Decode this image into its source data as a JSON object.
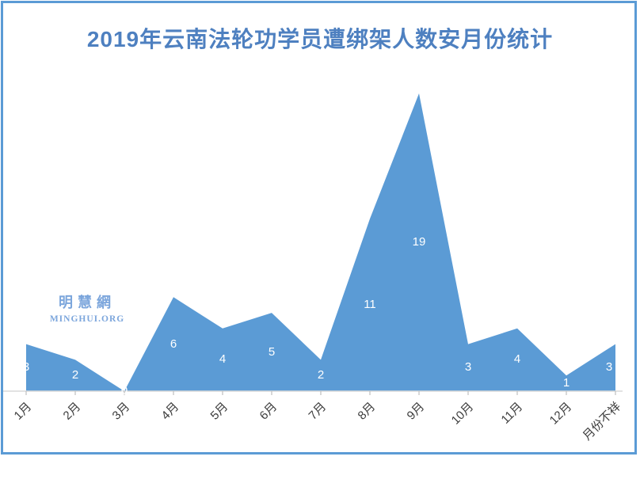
{
  "chart_data": {
    "type": "area",
    "title": "2019年云南法轮功学员遭绑架人数安月份统计",
    "categories": [
      "1月",
      "2月",
      "3月",
      "4月",
      "5月",
      "6月",
      "7月",
      "8月",
      "9月",
      "10月",
      "11月",
      "12月",
      "月份不祥"
    ],
    "values": [
      3,
      2,
      0,
      6,
      4,
      5,
      2,
      11,
      19,
      3,
      4,
      1,
      3
    ],
    "ylim": [
      0,
      19
    ],
    "grid": false,
    "legend": "none",
    "label_position": "center",
    "xlabel": "",
    "ylabel": "",
    "colors": {
      "area_fill": "#5B9BD5",
      "data_label": "#FFFFFF",
      "title": "#4E80C0",
      "axis_line": "#D9D9D9",
      "tick": "#BFBFBF",
      "axis_label": "#3B3B3B",
      "frame_border": "#5B9BD5"
    }
  },
  "watermark": {
    "line1": "明慧網",
    "line2": "MINGHUI.ORG",
    "color": "#7CA6DC"
  }
}
